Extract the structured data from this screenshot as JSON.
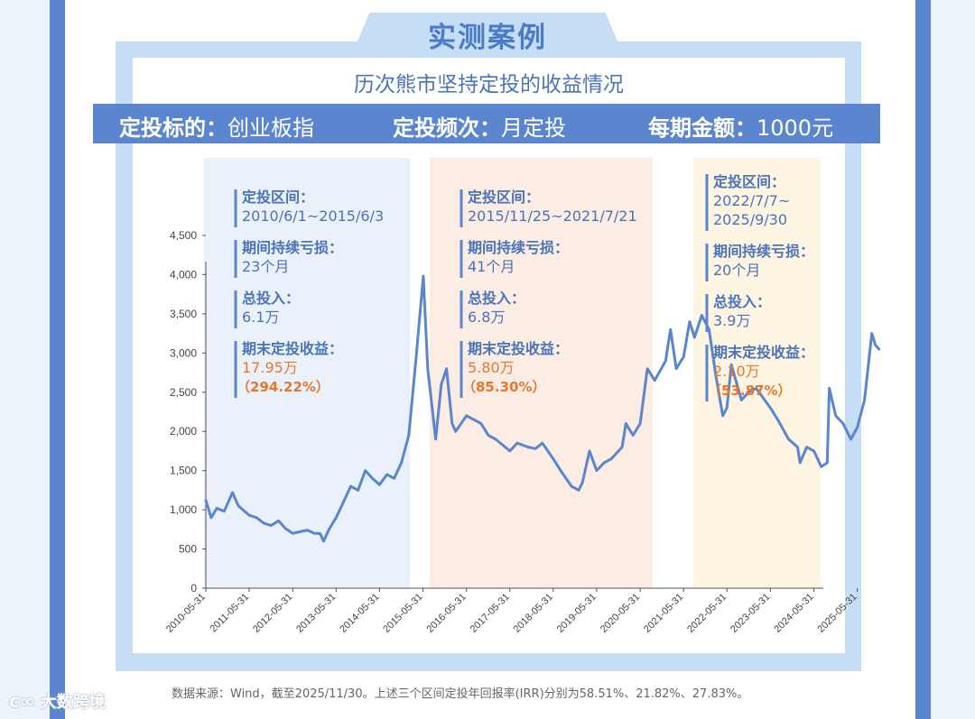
{
  "header": {
    "tab_title": "实测案例",
    "subtitle": "历次熊市坚持定投的收益情况"
  },
  "band": {
    "target_label": "定投标的：",
    "target_value": "创业板指",
    "freq_label": "定投频次：",
    "freq_value": "月定投",
    "amount_label": "每期金额：",
    "amount_value": "1000元"
  },
  "periods": [
    {
      "range_label": "定投区间：",
      "range_lines": [
        "2010/6/1~2015/6/3"
      ],
      "loss_label": "期间持续亏损：",
      "loss_value": "23个月",
      "invest_label": "总投入：",
      "invest_value": "6.1万",
      "gain_label": "期末定投收益：",
      "gain_value": "17.95万",
      "gain_pct": "（294.22%）",
      "bg": "#eaf1fa"
    },
    {
      "range_label": "定投区间：",
      "range_lines": [
        "2015/11/25~2021/7/21"
      ],
      "loss_label": "期间持续亏损：",
      "loss_value": "41个月",
      "invest_label": "总投入：",
      "invest_value": "6.8万",
      "gain_label": "期末定投收益：",
      "gain_value": "5.80万",
      "gain_pct": "（85.30%）",
      "bg": "#fbede4"
    },
    {
      "range_label": "定投区间：",
      "range_lines": [
        "2022/7/7~",
        "2025/9/30"
      ],
      "loss_label": "期间持续亏损：",
      "loss_value": "20个月",
      "invest_label": "总投入：",
      "invest_value": "3.9万",
      "gain_label": "期末定投收益：",
      "gain_value": "2.10万",
      "gain_pct": "（53.87%）",
      "bg": "#fdf4e2"
    }
  ],
  "colors": {
    "line": "#5b86cf",
    "label": "#4a73b9",
    "gain": "#e8772e",
    "axis": "#555555"
  },
  "chart_data": {
    "type": "line",
    "x_tick_labels": [
      "2010-05-31",
      "2011-05-31",
      "2012-05-31",
      "2013-05-31",
      "2014-05-31",
      "2015-05-31",
      "2016-05-31",
      "2017-05-31",
      "2018-05-31",
      "2019-05-31",
      "2020-05-31",
      "2021-05-31",
      "2022-05-31",
      "2023-05-31",
      "2024-05-31",
      "2025-05-31"
    ],
    "y_ticks": [
      0,
      500,
      1000,
      1500,
      2000,
      2500,
      3000,
      3500,
      4000,
      4500
    ],
    "y_tick_labels": [
      "0",
      "500",
      "1,000",
      "1,500",
      "2,000",
      "2,500",
      "3,000",
      "3,500",
      "4,000",
      "4,500"
    ],
    "ylim": [
      0,
      4500
    ],
    "grid": false,
    "series": [
      {
        "values": [
          [
            "2010-05-31",
            1120
          ],
          [
            "2010-07-15",
            900
          ],
          [
            "2010-09-01",
            1020
          ],
          [
            "2010-11-01",
            980
          ],
          [
            "2011-01-10",
            1220
          ],
          [
            "2011-03-01",
            1050
          ],
          [
            "2011-05-31",
            930
          ],
          [
            "2011-08-01",
            900
          ],
          [
            "2011-10-01",
            830
          ],
          [
            "2011-12-01",
            800
          ],
          [
            "2012-02-01",
            860
          ],
          [
            "2012-04-01",
            760
          ],
          [
            "2012-05-31",
            700
          ],
          [
            "2012-08-01",
            720
          ],
          [
            "2012-10-01",
            740
          ],
          [
            "2012-12-01",
            700
          ],
          [
            "2013-01-15",
            700
          ],
          [
            "2013-02-15",
            600
          ],
          [
            "2013-04-01",
            750
          ],
          [
            "2013-05-31",
            900
          ],
          [
            "2013-08-01",
            1100
          ],
          [
            "2013-10-01",
            1300
          ],
          [
            "2013-12-01",
            1250
          ],
          [
            "2014-02-01",
            1500
          ],
          [
            "2014-04-01",
            1400
          ],
          [
            "2014-05-31",
            1320
          ],
          [
            "2014-08-01",
            1450
          ],
          [
            "2014-10-01",
            1400
          ],
          [
            "2014-12-01",
            1600
          ],
          [
            "2015-02-01",
            1950
          ],
          [
            "2015-04-01",
            2900
          ],
          [
            "2015-06-03",
            3980
          ],
          [
            "2015-07-10",
            2800
          ],
          [
            "2015-09-15",
            1900
          ],
          [
            "2015-11-01",
            2600
          ],
          [
            "2015-12-15",
            2800
          ],
          [
            "2016-01-31",
            2100
          ],
          [
            "2016-03-01",
            2000
          ],
          [
            "2016-05-31",
            2200
          ],
          [
            "2016-08-01",
            2150
          ],
          [
            "2016-10-01",
            2100
          ],
          [
            "2016-12-01",
            1950
          ],
          [
            "2017-02-01",
            1900
          ],
          [
            "2017-05-31",
            1750
          ],
          [
            "2017-08-01",
            1850
          ],
          [
            "2017-11-01",
            1800
          ],
          [
            "2018-01-01",
            1780
          ],
          [
            "2018-03-01",
            1850
          ],
          [
            "2018-05-31",
            1650
          ],
          [
            "2018-08-01",
            1500
          ],
          [
            "2018-10-31",
            1300
          ],
          [
            "2018-12-31",
            1250
          ],
          [
            "2019-02-01",
            1350
          ],
          [
            "2019-04-01",
            1750
          ],
          [
            "2019-05-31",
            1500
          ],
          [
            "2019-08-01",
            1600
          ],
          [
            "2019-10-01",
            1650
          ],
          [
            "2019-12-31",
            1800
          ],
          [
            "2020-02-01",
            2100
          ],
          [
            "2020-04-01",
            1950
          ],
          [
            "2020-05-31",
            2100
          ],
          [
            "2020-07-31",
            2800
          ],
          [
            "2020-09-30",
            2650
          ],
          [
            "2020-12-31",
            2900
          ],
          [
            "2021-02-10",
            3300
          ],
          [
            "2021-03-31",
            2800
          ],
          [
            "2021-05-31",
            2950
          ],
          [
            "2021-07-21",
            3400
          ],
          [
            "2021-08-31",
            3200
          ],
          [
            "2021-10-31",
            3480
          ],
          [
            "2021-12-31",
            3300
          ],
          [
            "2022-02-28",
            2700
          ],
          [
            "2022-04-26",
            2200
          ],
          [
            "2022-05-31",
            2300
          ],
          [
            "2022-07-07",
            2850
          ],
          [
            "2022-09-30",
            2400
          ],
          [
            "2022-11-30",
            2500
          ],
          [
            "2023-02-01",
            2550
          ],
          [
            "2023-05-31",
            2300
          ],
          [
            "2023-08-01",
            2150
          ],
          [
            "2023-10-31",
            1900
          ],
          [
            "2024-01-15",
            1800
          ],
          [
            "2024-02-05",
            1600
          ],
          [
            "2024-04-01",
            1800
          ],
          [
            "2024-05-31",
            1750
          ],
          [
            "2024-08-01",
            1550
          ],
          [
            "2024-09-20",
            1600
          ],
          [
            "2024-10-08",
            2550
          ],
          [
            "2024-12-01",
            2200
          ],
          [
            "2025-02-01",
            2100
          ],
          [
            "2025-04-07",
            1900
          ],
          [
            "2025-05-31",
            2050
          ],
          [
            "2025-07-31",
            2400
          ],
          [
            "2025-09-30",
            3250
          ],
          [
            "2025-10-31",
            3100
          ],
          [
            "2025-11-30",
            3050
          ]
        ]
      }
    ]
  },
  "source": "数据来源：Wind，截至2025/11/30。上述三个区间定投年回报率(IRR)分别为58.51%、21.82%、27.83%。",
  "watermark": {
    "icon": "ᴄ∞",
    "text": "大数跨境"
  }
}
